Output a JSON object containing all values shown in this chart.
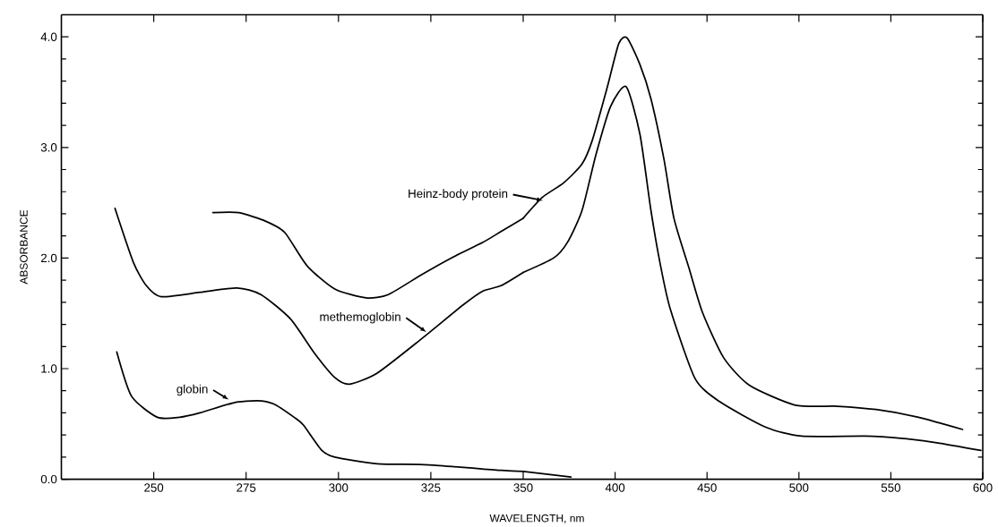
{
  "chart_data": [
    {
      "type": "line",
      "ylabel": "ABSORBANCE",
      "xlabel": "WAVELENGTH, nm",
      "xlim": [
        225,
        350
      ],
      "ylim": [
        0,
        4.2
      ],
      "xticks": [
        250,
        275,
        300,
        325
      ],
      "yticks": [
        {
          "value": 0,
          "label": "0.0"
        },
        {
          "value": 1,
          "label": "1.0"
        },
        {
          "value": 2,
          "label": "2.0"
        },
        {
          "value": 3,
          "label": "3.0"
        },
        {
          "value": 4,
          "label": "4.0"
        }
      ],
      "series": [
        {
          "color": "#000000",
          "x": [
            240,
            244,
            251,
            257,
            262.5,
            271.5,
            278,
            282.5,
            288,
            290.5,
            295.5,
            299,
            310.5,
            324.5,
            344,
            350
          ],
          "values": [
            1.15,
            0.75,
            0.56,
            0.56,
            0.6,
            0.69,
            0.71,
            0.68,
            0.56,
            0.49,
            0.26,
            0.2,
            0.14,
            0.13,
            0.08,
            0.07
          ]
        },
        {
          "color": "#000000",
          "x": [
            239.5,
            244.5,
            248,
            252,
            262.5,
            272.5,
            279,
            287,
            293.5,
            299,
            303,
            310.5,
            322.5,
            333.5,
            339,
            344,
            350
          ],
          "values": [
            2.45,
            1.96,
            1.75,
            1.65,
            1.69,
            1.73,
            1.67,
            1.45,
            1.14,
            0.92,
            0.86,
            0.96,
            1.27,
            1.57,
            1.7,
            1.75,
            1.87
          ]
        },
        {
          "color": "#000000",
          "x": [
            266,
            273,
            280.5,
            285.5,
            291.5,
            299,
            307.5,
            313.5,
            322.5,
            330.5,
            339,
            344,
            350
          ],
          "values": [
            2.41,
            2.41,
            2.33,
            2.23,
            1.93,
            1.72,
            1.64,
            1.67,
            1.85,
            2.0,
            2.14,
            2.24,
            2.36
          ]
        }
      ],
      "annotations": [
        {
          "text": "globin",
          "x": 270.3,
          "y": 0.72
        },
        {
          "text": "methemoglobin",
          "x": 323.8,
          "y": 1.33
        }
      ]
    },
    {
      "type": "line",
      "xlim": [
        350,
        600
      ],
      "ylim": [
        0,
        4.2
      ],
      "tick_labels": "x",
      "xticks": [
        350,
        400,
        450,
        500,
        550,
        600
      ],
      "yticks": [
        {
          "value": 0,
          "label": null
        },
        {
          "value": 1,
          "label": null
        },
        {
          "value": 2,
          "label": null
        },
        {
          "value": 3,
          "label": null
        },
        {
          "value": 4,
          "label": null
        }
      ],
      "series": [
        {
          "color": "#000000",
          "x": [
            350,
            376
          ],
          "values": [
            0.07,
            0.02
          ]
        },
        {
          "color": "#000000",
          "x": [
            350,
            366.5,
            374,
            382,
            389.5,
            397.5,
            406,
            413.5,
            419.5,
            424.5,
            430,
            443.5,
            457,
            482,
            501.5,
            536,
            555.5,
            575,
            599
          ],
          "values": [
            1.87,
            2.0,
            2.14,
            2.43,
            2.93,
            3.37,
            3.55,
            3.12,
            2.43,
            1.95,
            1.54,
            0.91,
            0.7,
            0.47,
            0.39,
            0.39,
            0.37,
            0.33,
            0.26
          ]
        },
        {
          "color": "#000000",
          "x": [
            350,
            360.5,
            372,
            382,
            387.5,
            395.5,
            402,
            406.5,
            413.5,
            419.5,
            426.5,
            432,
            440,
            447.5,
            459,
            473,
            498,
            521,
            542,
            565,
            589
          ],
          "values": [
            2.36,
            2.55,
            2.68,
            2.85,
            3.06,
            3.53,
            3.94,
            3.99,
            3.75,
            3.44,
            2.9,
            2.36,
            1.92,
            1.51,
            1.1,
            0.85,
            0.67,
            0.66,
            0.63,
            0.56,
            0.45
          ]
        }
      ],
      "annotations": [
        {
          "text": "Heinz-body protein",
          "x": 360.7,
          "y": 2.52
        }
      ]
    }
  ]
}
